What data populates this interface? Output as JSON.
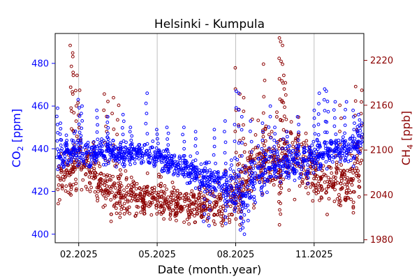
{
  "chart_data": {
    "type": "scatter",
    "title": "Helsinki - Kumpula",
    "xlabel": "Date (month.year)",
    "x_ticks": [
      "02.2025",
      "05.2025",
      "08.2025",
      "11.2025"
    ],
    "x_tick_months": [
      1,
      4,
      7,
      10
    ],
    "xlim_months": [
      0.1,
      11.9
    ],
    "grid": "vertical",
    "left_axis": {
      "label": "CO₂ [ppm]",
      "label_main": "CO",
      "label_sub": "2",
      "label_rest": " [ppm]",
      "ticks": [
        400,
        420,
        440,
        460,
        480
      ],
      "ylim": [
        396,
        494
      ],
      "color": "#0000ff"
    },
    "right_axis": {
      "label": "CH₄ [ppb]",
      "label_main": "CH",
      "label_sub": "4",
      "label_rest": " [ppb]",
      "ticks": [
        1980,
        2040,
        2100,
        2160,
        2220
      ],
      "ylim": [
        1976,
        2256
      ],
      "color": "#8b0000"
    },
    "series": [
      {
        "name": "CO₂",
        "axis": "left",
        "color": "#0000ff",
        "marker": "open-circle",
        "trend": [
          [
            0.2,
            436
          ],
          [
            1.0,
            440
          ],
          [
            1.5,
            436
          ],
          [
            2.0,
            440
          ],
          [
            2.5,
            437
          ],
          [
            3.0,
            438
          ],
          [
            3.5,
            438
          ],
          [
            4.0,
            436
          ],
          [
            4.5,
            433
          ],
          [
            5.0,
            430
          ],
          [
            5.5,
            428
          ],
          [
            6.0,
            426
          ],
          [
            6.5,
            424
          ],
          [
            7.0,
            420
          ],
          [
            7.3,
            418
          ],
          [
            7.6,
            424
          ],
          [
            8.0,
            428
          ],
          [
            8.5,
            432
          ],
          [
            9.0,
            434
          ],
          [
            9.5,
            433
          ],
          [
            10.0,
            436
          ],
          [
            10.5,
            438
          ],
          [
            11.0,
            440
          ],
          [
            11.5,
            440
          ],
          [
            11.9,
            442
          ]
        ],
        "band": [
          [
            0.2,
            10
          ],
          [
            1.0,
            9
          ],
          [
            2.0,
            8
          ],
          [
            3.0,
            7
          ],
          [
            4.0,
            8
          ],
          [
            5.0,
            9
          ],
          [
            6.0,
            10
          ],
          [
            7.0,
            14
          ],
          [
            7.6,
            16
          ],
          [
            8.5,
            12
          ],
          [
            9.5,
            10
          ],
          [
            10.5,
            9
          ],
          [
            11.5,
            9
          ],
          [
            11.9,
            10
          ]
        ],
        "spikes": [
          [
            0.2,
            459
          ],
          [
            0.3,
            452
          ],
          [
            1.0,
            463
          ],
          [
            1.1,
            460
          ],
          [
            1.7,
            458
          ],
          [
            2.1,
            455
          ],
          [
            2.7,
            456
          ],
          [
            3.0,
            450
          ],
          [
            3.6,
            466
          ],
          [
            4.0,
            449
          ],
          [
            4.4,
            450
          ],
          [
            5.0,
            450
          ],
          [
            5.5,
            448
          ],
          [
            6.2,
            449
          ],
          [
            6.6,
            453
          ],
          [
            7.0,
            467
          ],
          [
            7.1,
            466
          ],
          [
            7.25,
            455
          ],
          [
            7.6,
            453
          ],
          [
            8.0,
            452
          ],
          [
            8.3,
            460
          ],
          [
            8.5,
            450
          ],
          [
            9.0,
            448
          ],
          [
            9.4,
            455
          ],
          [
            10.0,
            458
          ],
          [
            10.2,
            466
          ],
          [
            10.4,
            468
          ],
          [
            10.5,
            467
          ],
          [
            10.8,
            462
          ],
          [
            11.2,
            462
          ],
          [
            11.5,
            458
          ],
          [
            11.7,
            456
          ],
          [
            11.8,
            452
          ],
          [
            7.3,
            400
          ],
          [
            7.2,
            402
          ],
          [
            6.6,
            405
          ],
          [
            6.0,
            404
          ],
          [
            5.8,
            406
          ]
        ]
      },
      {
        "name": "CH₄",
        "axis": "right",
        "color": "#8b0000",
        "marker": "open-circle",
        "trend": [
          [
            0.2,
            2060
          ],
          [
            1.0,
            2080
          ],
          [
            1.5,
            2070
          ],
          [
            2.0,
            2045
          ],
          [
            3.0,
            2040
          ],
          [
            4.0,
            2035
          ],
          [
            5.0,
            2030
          ],
          [
            6.0,
            2025
          ],
          [
            6.5,
            2025
          ],
          [
            7.0,
            2040
          ],
          [
            7.5,
            2075
          ],
          [
            8.0,
            2085
          ],
          [
            8.5,
            2080
          ],
          [
            9.0,
            2095
          ],
          [
            9.5,
            2090
          ],
          [
            10.0,
            2065
          ],
          [
            10.5,
            2060
          ],
          [
            11.0,
            2055
          ],
          [
            11.5,
            2060
          ],
          [
            11.9,
            2095
          ]
        ],
        "band": [
          [
            0.2,
            45
          ],
          [
            1.0,
            50
          ],
          [
            2.0,
            40
          ],
          [
            3.0,
            35
          ],
          [
            4.0,
            35
          ],
          [
            5.0,
            32
          ],
          [
            6.0,
            35
          ],
          [
            7.0,
            50
          ],
          [
            8.0,
            60
          ],
          [
            8.5,
            55
          ],
          [
            9.0,
            60
          ],
          [
            10.0,
            45
          ],
          [
            11.0,
            45
          ],
          [
            11.9,
            55
          ]
        ],
        "spikes": [
          [
            0.7,
            2240
          ],
          [
            0.75,
            2230
          ],
          [
            0.8,
            2225
          ],
          [
            0.9,
            2200
          ],
          [
            1.0,
            2180
          ],
          [
            2.0,
            2175
          ],
          [
            2.1,
            2165
          ],
          [
            2.3,
            2170
          ],
          [
            2.5,
            2160
          ],
          [
            7.0,
            2210
          ],
          [
            7.15,
            2175
          ],
          [
            7.3,
            2170
          ],
          [
            8.1,
            2215
          ],
          [
            8.7,
            2250
          ],
          [
            8.75,
            2245
          ],
          [
            8.8,
            2240
          ],
          [
            8.85,
            2200
          ],
          [
            8.9,
            2190
          ],
          [
            11.0,
            2160
          ],
          [
            11.6,
            2185
          ],
          [
            11.8,
            2180
          ],
          [
            8.5,
            2100
          ],
          [
            8.65,
            2020
          ],
          [
            8.7,
            2000
          ],
          [
            7.2,
            2000
          ],
          [
            2.6,
            2010
          ],
          [
            6.5,
            2005
          ],
          [
            5.7,
            2010
          ],
          [
            3.5,
            2015
          ]
        ]
      }
    ]
  }
}
